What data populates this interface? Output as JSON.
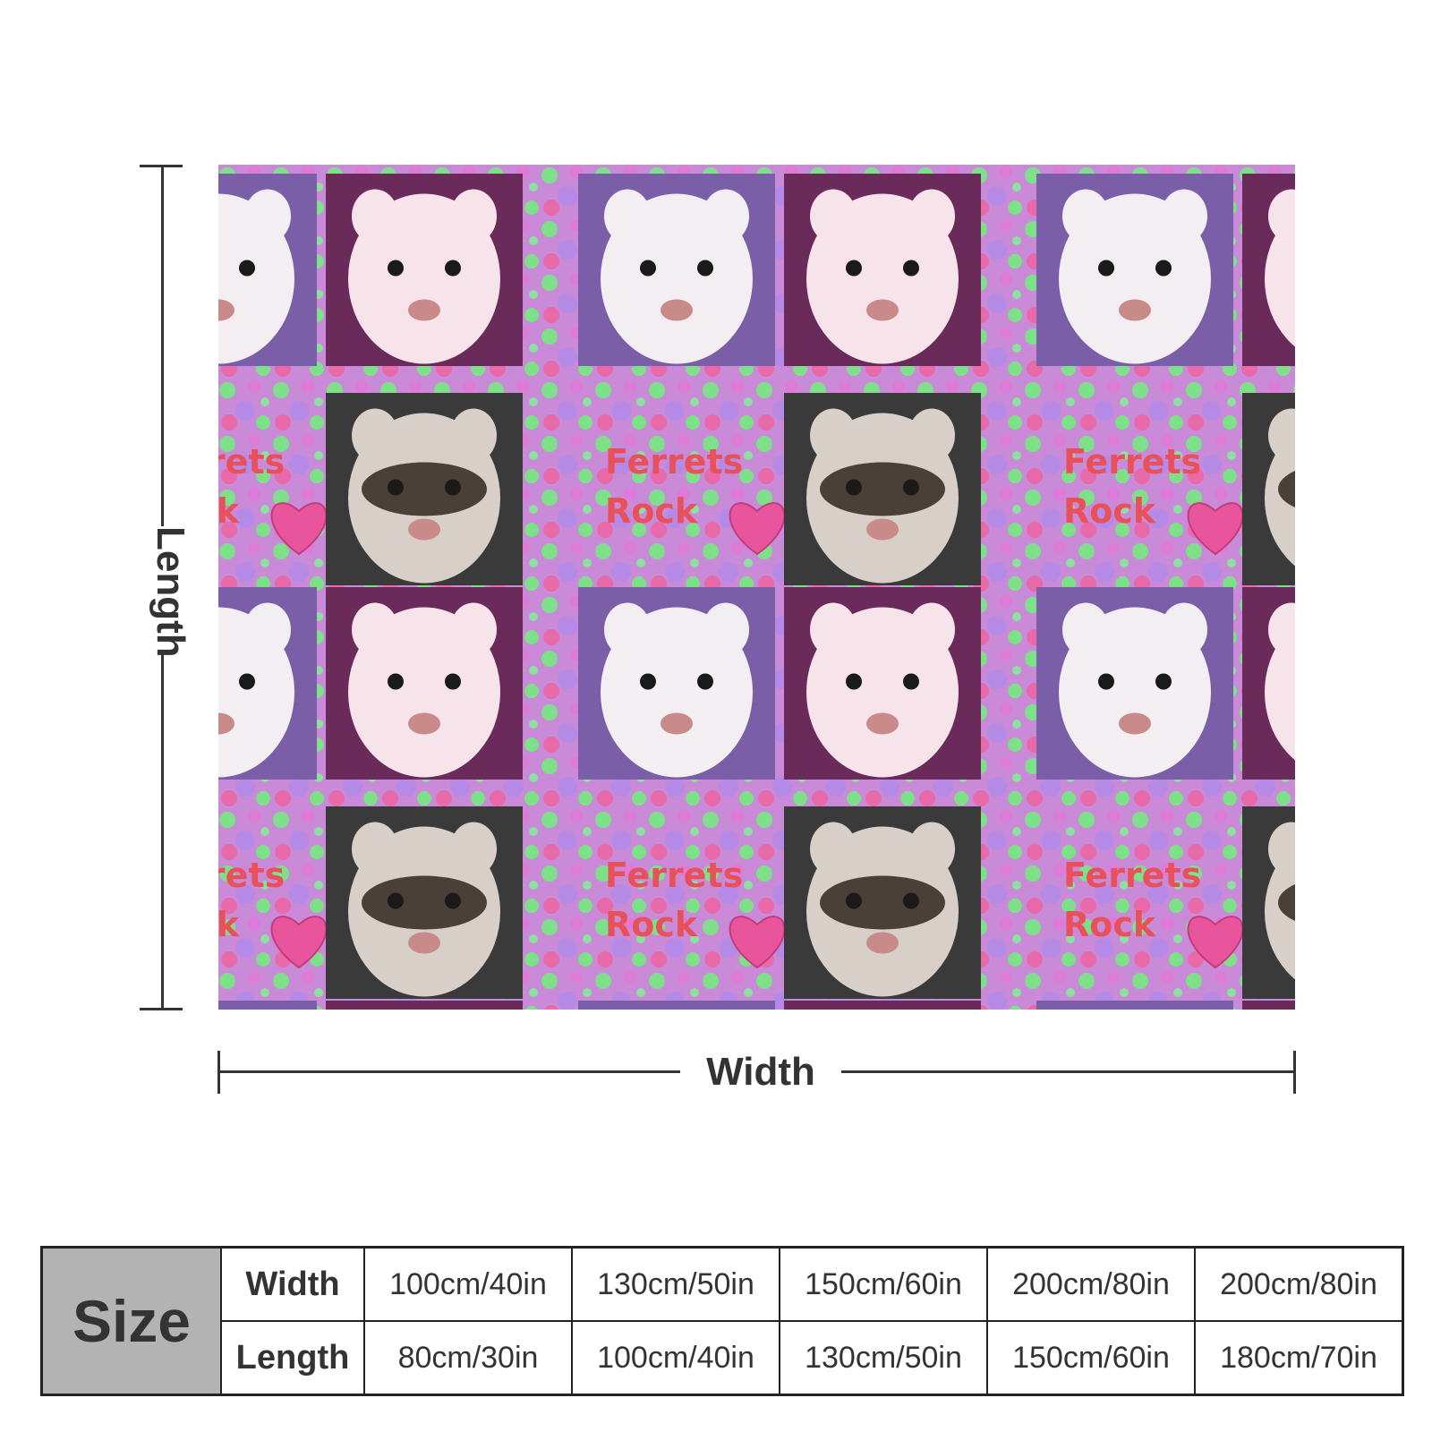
{
  "product": {
    "pattern_text_line1": "Ferrets",
    "pattern_text_line2": "Rock",
    "colors": {
      "pink": "#e07ad8",
      "green": "#7fe08a",
      "lilac": "#b48ae6",
      "heart": "#e8559c",
      "text_red": "#e8505a"
    }
  },
  "dimensions": {
    "length_label": "Length",
    "width_label": "Width"
  },
  "size_table": {
    "header": "Size",
    "width_label": "Width",
    "length_label": "Length",
    "widths": [
      "100cm/40in",
      "130cm/50in",
      "150cm/60in",
      "200cm/80in",
      "200cm/80in"
    ],
    "lengths": [
      "80cm/30in",
      "100cm/40in",
      "130cm/50in",
      "150cm/60in",
      "180cm/70in"
    ]
  }
}
